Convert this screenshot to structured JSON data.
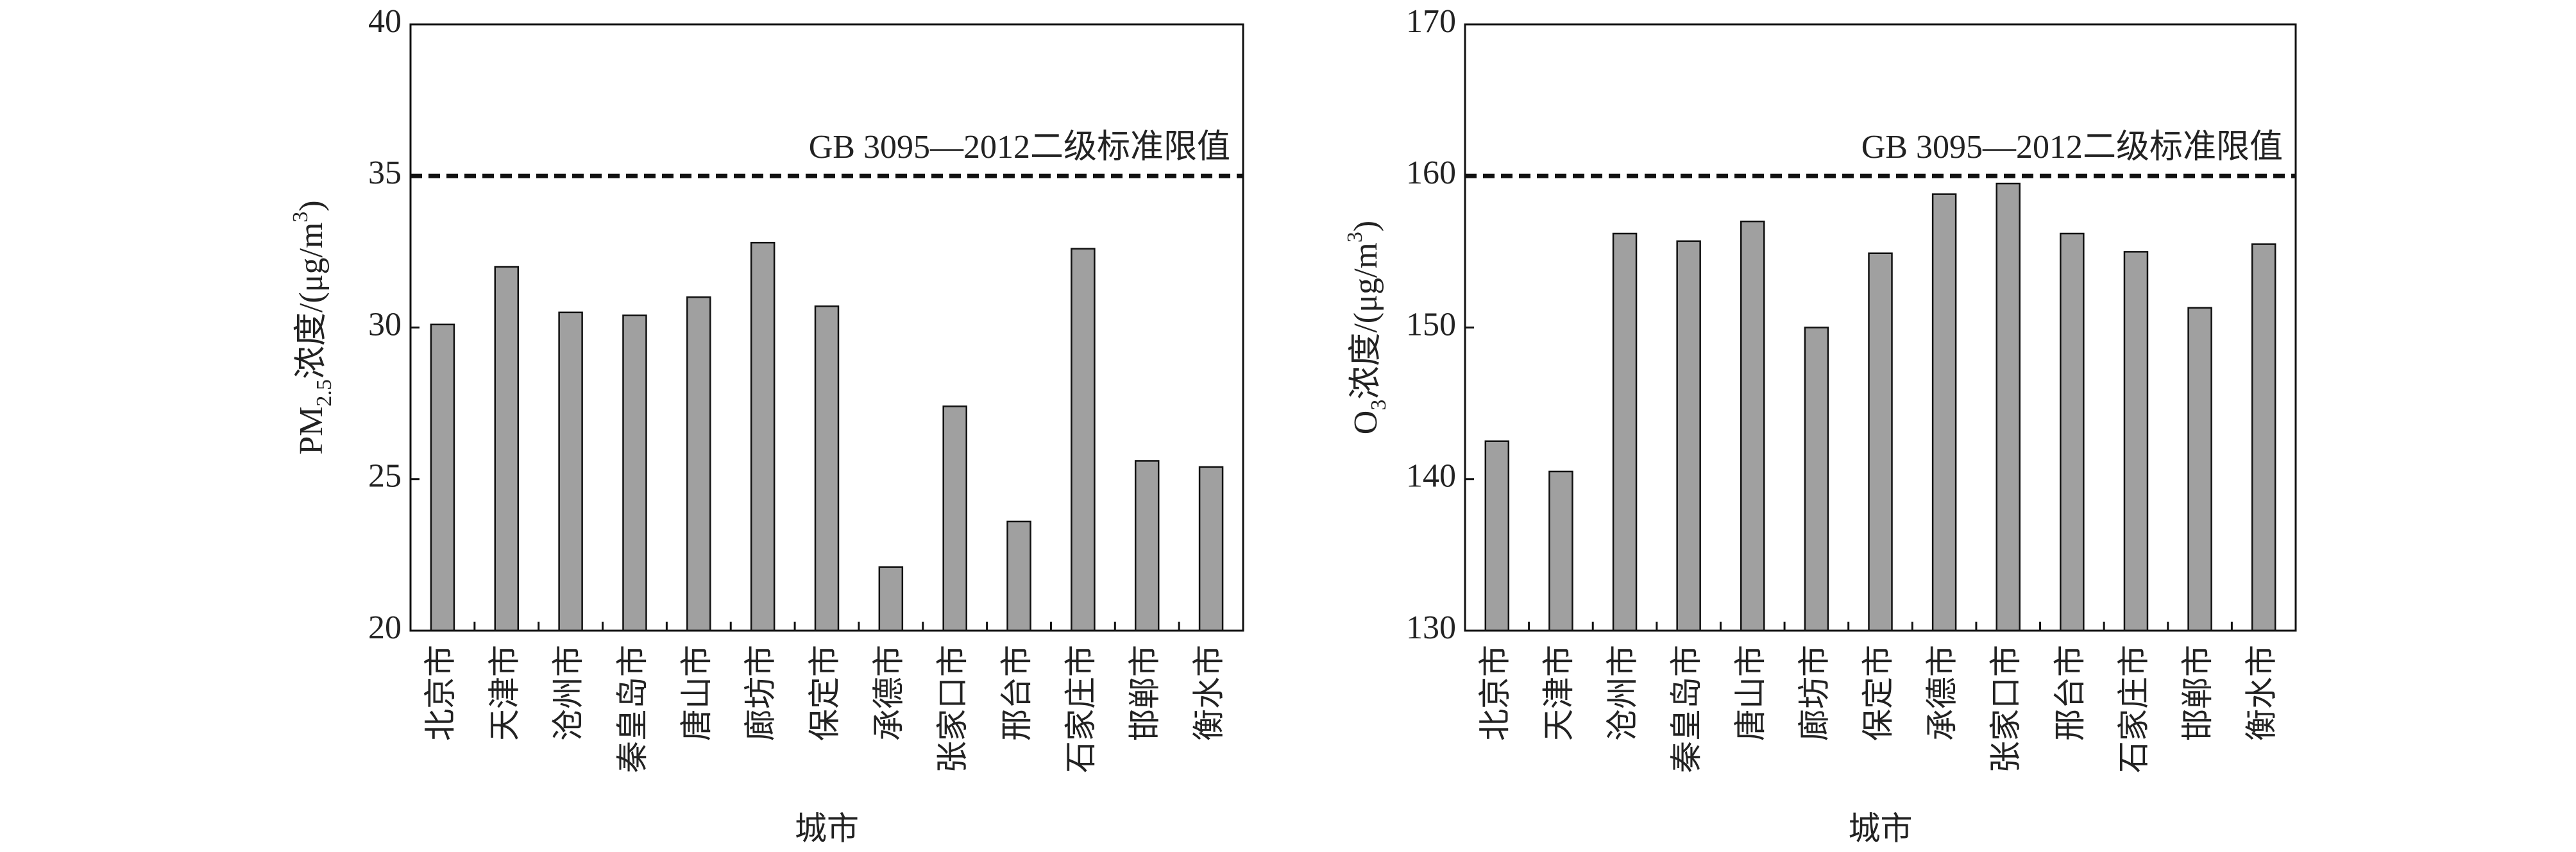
{
  "chart_data": [
    {
      "type": "bar",
      "ylabel": [
        {
          "text": "PM"
        },
        {
          "text": "2.5",
          "shift": "sub"
        },
        {
          "text": "浓度/(μg/m"
        },
        {
          "text": "3",
          "shift": "super"
        },
        {
          "text": ")"
        }
      ],
      "xlabel": "城市",
      "categories": [
        "北京市",
        "天津市",
        "沧州市",
        "秦皇岛市",
        "唐山市",
        "廊坊市",
        "保定市",
        "承德市",
        "张家口市",
        "邢台市",
        "石家庄市",
        "邯郸市",
        "衡水市"
      ],
      "values": [
        30.1,
        32.0,
        30.5,
        30.4,
        31.0,
        32.8,
        30.7,
        22.1,
        27.4,
        23.6,
        32.6,
        25.6,
        25.4
      ],
      "color": "#a0a0a0",
      "ylim": [
        20,
        40
      ],
      "yticks": [
        20,
        25,
        30,
        35,
        40
      ],
      "reference": {
        "value": 35,
        "label": "GB 3095—2012二级标准限值"
      }
    },
    {
      "type": "bar",
      "ylabel": [
        {
          "text": "O"
        },
        {
          "text": "3",
          "shift": "sub"
        },
        {
          "text": "浓度/(μg/m"
        },
        {
          "text": "3",
          "shift": "super"
        },
        {
          "text": ")"
        }
      ],
      "xlabel": "城市",
      "categories": [
        "北京市",
        "天津市",
        "沧州市",
        "秦皇岛市",
        "唐山市",
        "廊坊市",
        "保定市",
        "承德市",
        "张家口市",
        "邢台市",
        "石家庄市",
        "邯郸市",
        "衡水市"
      ],
      "values": [
        142.5,
        140.5,
        156.2,
        155.7,
        157.0,
        150.0,
        154.9,
        158.8,
        159.5,
        156.2,
        155.0,
        151.3,
        155.5
      ],
      "color": "#a0a0a0",
      "ylim": [
        130,
        170
      ],
      "yticks": [
        130,
        140,
        150,
        160,
        170
      ],
      "reference": {
        "value": 160,
        "label": "GB 3095—2012二级标准限值"
      }
    }
  ]
}
